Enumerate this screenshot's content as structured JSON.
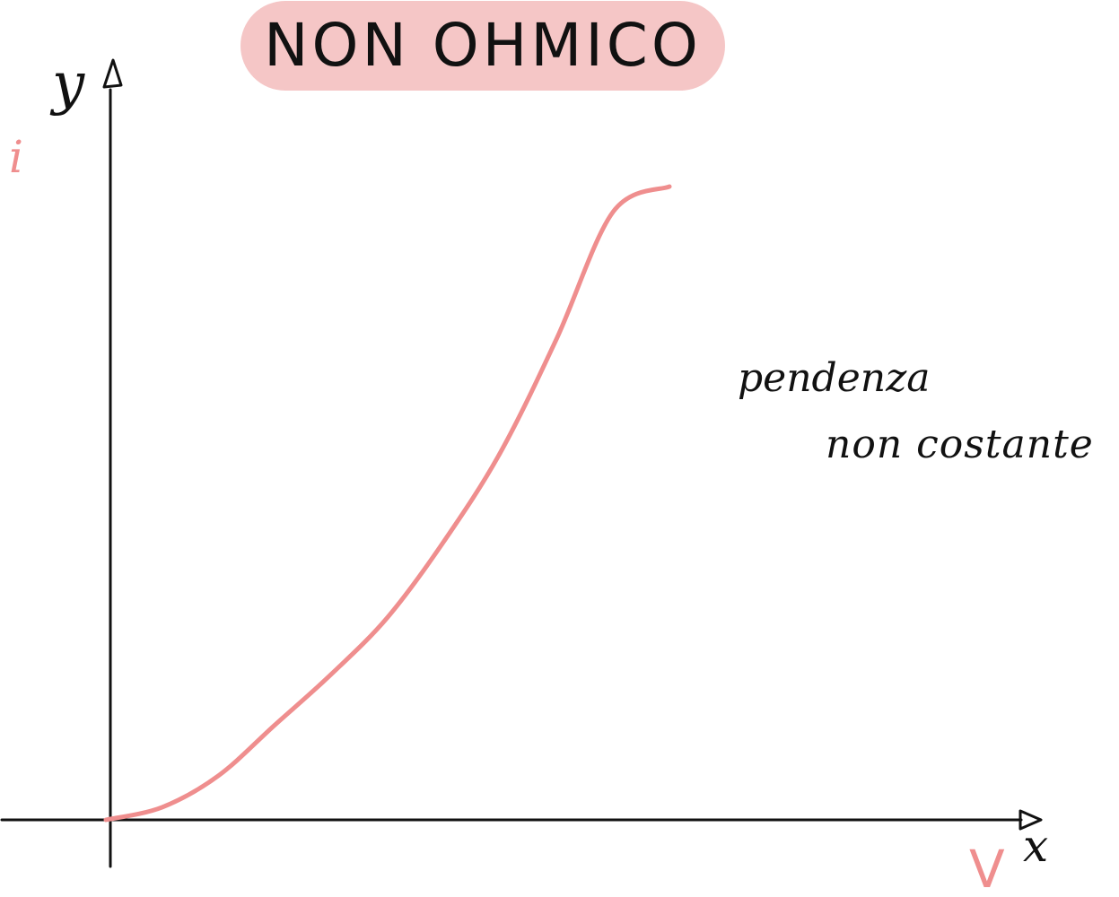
{
  "title": "NON OHMICO",
  "axes": {
    "y_label": "y",
    "y_quantity": "i",
    "x_label": "x",
    "x_quantity": "V"
  },
  "annotation": {
    "line1": "pendenza",
    "line2": "non costante"
  },
  "colors": {
    "title_background": "#f5c6c6",
    "curve": "#ef8e8e",
    "ink": "#111111",
    "quantity_labels": "#ef8e8e"
  },
  "chart_data": {
    "type": "line",
    "xlabel": "V",
    "ylabel": "i",
    "series": [
      {
        "x": [
          0,
          0.1,
          0.2,
          0.3,
          0.4,
          0.5,
          0.6,
          0.7,
          0.8,
          0.9,
          1.0
        ],
        "y": [
          0,
          0.02,
          0.07,
          0.15,
          0.23,
          0.32,
          0.44,
          0.58,
          0.76,
          0.96,
          1.0
        ]
      }
    ],
    "grid": false,
    "xlim": [
      0,
      1
    ],
    "ylim": [
      0,
      1
    ]
  }
}
